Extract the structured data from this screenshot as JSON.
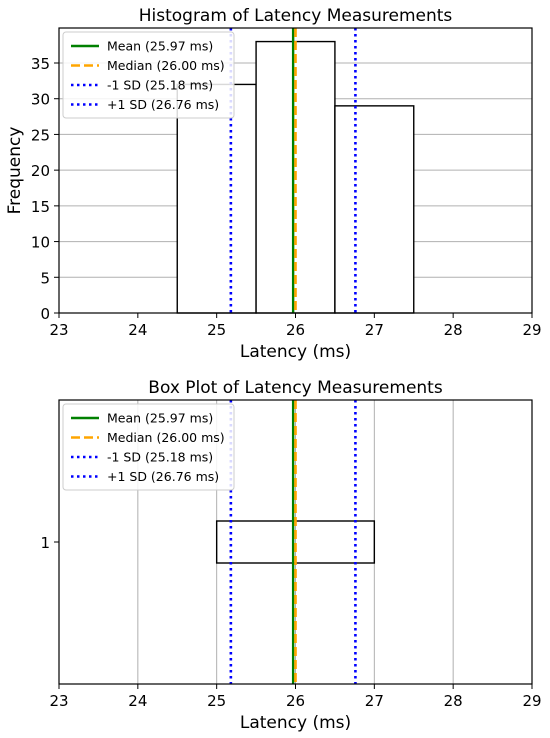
{
  "chart_data": [
    {
      "type": "bar",
      "title": "Histogram of Latency Measurements",
      "xlabel": "Latency (ms)",
      "ylabel": "Frequency",
      "xlim": [
        23,
        29
      ],
      "ylim": [
        0,
        39.9
      ],
      "xticks": [
        "23",
        "24",
        "25",
        "26",
        "27",
        "28",
        "29"
      ],
      "yticks": [
        "0",
        "5",
        "10",
        "15",
        "20",
        "25",
        "30",
        "35"
      ],
      "grid": "y",
      "bins": [
        {
          "start": 24.5,
          "end": 25.5,
          "count": 32
        },
        {
          "start": 25.5,
          "end": 26.5,
          "count": 38
        },
        {
          "start": 26.5,
          "end": 27.5,
          "count": 29
        }
      ],
      "reference_lines": [
        {
          "label": "Mean (25.97 ms)",
          "value": 25.97,
          "color": "#008000",
          "style": "solid"
        },
        {
          "label": "Median (26.00 ms)",
          "value": 26.0,
          "color": "#FFA500",
          "style": "dashed"
        },
        {
          "label": "-1 SD (25.18 ms)",
          "value": 25.18,
          "color": "#0000FF",
          "style": "dotted"
        },
        {
          "label": "+1 SD (26.76 ms)",
          "value": 26.76,
          "color": "#0000FF",
          "style": "dotted"
        }
      ],
      "legend_position": "top-left"
    },
    {
      "type": "box",
      "title": "Box Plot of Latency Measurements",
      "xlabel": "Latency (ms)",
      "xlim": [
        23,
        29
      ],
      "xticks": [
        "23",
        "24",
        "25",
        "26",
        "27",
        "28",
        "29"
      ],
      "yticks": [
        "1"
      ],
      "grid": "x",
      "box": {
        "category": "1",
        "q1": 25.0,
        "median": 26.0,
        "q3": 27.0,
        "whisker_low": 25.0,
        "whisker_high": 27.0
      },
      "reference_lines": [
        {
          "label": "Mean (25.97 ms)",
          "value": 25.97,
          "color": "#008000",
          "style": "solid"
        },
        {
          "label": "Median (26.00 ms)",
          "value": 26.0,
          "color": "#FFA500",
          "style": "dashed"
        },
        {
          "label": "-1 SD (25.18 ms)",
          "value": 25.18,
          "color": "#0000FF",
          "style": "dotted"
        },
        {
          "label": "+1 SD (26.76 ms)",
          "value": 26.76,
          "color": "#0000FF",
          "style": "dotted"
        }
      ],
      "legend_position": "top-left"
    }
  ]
}
